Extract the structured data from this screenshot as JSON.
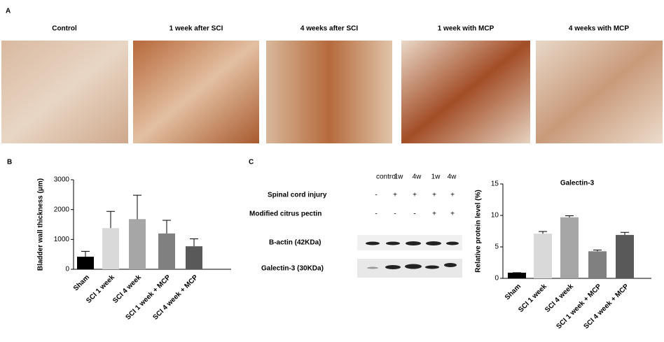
{
  "panels": {
    "a": "A",
    "b": "B",
    "c": "C"
  },
  "images": [
    "Control",
    "1 week after SCI",
    "4 weeks after SCI",
    "1 week with MCP",
    "4 weeks with MCP"
  ],
  "blot": {
    "columns": [
      "control",
      "1w",
      "4w",
      "1w",
      "4w"
    ],
    "rows": [
      {
        "label": "Spinal cord injury",
        "signs": [
          "-",
          "+",
          "+",
          "+",
          "+"
        ]
      },
      {
        "label": "Modified citrus pectin",
        "signs": [
          "-",
          "-",
          "-",
          "+",
          "+"
        ]
      }
    ],
    "bands": [
      "B-actin (42KDa)",
      "Galectin-3 (30KDa)"
    ]
  },
  "chart_data": [
    {
      "type": "bar",
      "y_label": "Bladder wall thickness (μm)",
      "categories": [
        "Sham",
        "SCI 1 week",
        "SCI 4 week",
        "SCI 1 week + MCP",
        "SCI 4 week + MCP"
      ],
      "values": [
        420,
        1380,
        1680,
        1200,
        770
      ],
      "errors": [
        180,
        560,
        800,
        440,
        250
      ],
      "colors": [
        "#000000",
        "#d9d9d9",
        "#a6a6a6",
        "#808080",
        "#595959"
      ],
      "ylim": [
        0,
        3000
      ],
      "yticks": [
        0,
        1000,
        2000,
        3000
      ]
    },
    {
      "type": "bar",
      "title": "Galectin-3",
      "y_label": "Relative protein level (%)",
      "categories": [
        "Sham",
        "SCI 1 week",
        "SCI 4 week",
        "SCI 1 week + MCP",
        "SCI 4 week + MCP"
      ],
      "values": [
        0.9,
        7.1,
        9.7,
        4.3,
        6.9
      ],
      "errors": [
        0,
        0.35,
        0.25,
        0.2,
        0.4
      ],
      "colors": [
        "#000000",
        "#d9d9d9",
        "#a6a6a6",
        "#808080",
        "#595959"
      ],
      "ylim": [
        0,
        15
      ],
      "yticks": [
        0,
        5,
        10,
        15
      ]
    }
  ]
}
